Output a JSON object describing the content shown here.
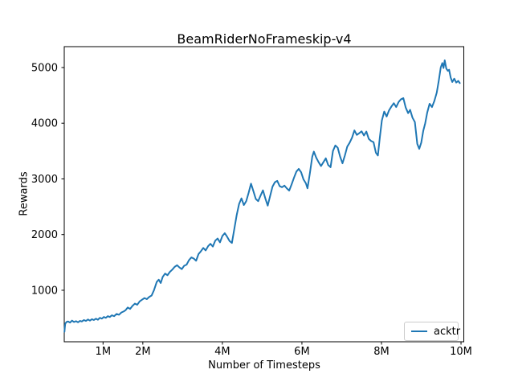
{
  "chart_data": {
    "type": "line",
    "title": "BeamRiderNoFrameskip-v4",
    "xlabel": "Number of Timesteps",
    "ylabel": "Rewards",
    "x_unit": "millions of timesteps",
    "xlim": [
      0.0245,
      10.07
    ],
    "ylim": [
      75,
      5375
    ],
    "grid": false,
    "axis_color": "#000000",
    "xticks": {
      "values": [
        1,
        2,
        4,
        6,
        8,
        10
      ],
      "labels": [
        "1M",
        "2M",
        "4M",
        "6M",
        "8M",
        "10M"
      ]
    },
    "yticks": {
      "values": [
        1000,
        2000,
        3000,
        4000,
        5000
      ],
      "labels": [
        "1000",
        "2000",
        "3000",
        "4000",
        "5000"
      ]
    },
    "legend": {
      "position": "lower right",
      "entries": [
        {
          "label": "acktr",
          "color": "#1f77b4"
        }
      ]
    },
    "series": [
      {
        "name": "acktr",
        "color": "#1f77b4",
        "points": [
          [
            0.03,
            255
          ],
          [
            0.04,
            340
          ],
          [
            0.05,
            400
          ],
          [
            0.08,
            430
          ],
          [
            0.12,
            440
          ],
          [
            0.17,
            420
          ],
          [
            0.22,
            455
          ],
          [
            0.27,
            430
          ],
          [
            0.32,
            445
          ],
          [
            0.37,
            425
          ],
          [
            0.42,
            450
          ],
          [
            0.47,
            440
          ],
          [
            0.52,
            465
          ],
          [
            0.57,
            450
          ],
          [
            0.62,
            475
          ],
          [
            0.67,
            455
          ],
          [
            0.72,
            480
          ],
          [
            0.77,
            465
          ],
          [
            0.82,
            490
          ],
          [
            0.87,
            470
          ],
          [
            0.92,
            505
          ],
          [
            0.97,
            490
          ],
          [
            1.02,
            520
          ],
          [
            1.07,
            505
          ],
          [
            1.12,
            535
          ],
          [
            1.17,
            520
          ],
          [
            1.22,
            550
          ],
          [
            1.28,
            535
          ],
          [
            1.34,
            575
          ],
          [
            1.4,
            560
          ],
          [
            1.46,
            600
          ],
          [
            1.52,
            620
          ],
          [
            1.57,
            645
          ],
          [
            1.62,
            690
          ],
          [
            1.68,
            665
          ],
          [
            1.74,
            720
          ],
          [
            1.8,
            760
          ],
          [
            1.86,
            740
          ],
          [
            1.92,
            800
          ],
          [
            1.98,
            830
          ],
          [
            2.04,
            860
          ],
          [
            2.1,
            840
          ],
          [
            2.16,
            880
          ],
          [
            2.22,
            905
          ],
          [
            2.28,
            1000
          ],
          [
            2.35,
            1150
          ],
          [
            2.4,
            1190
          ],
          [
            2.45,
            1130
          ],
          [
            2.5,
            1240
          ],
          [
            2.56,
            1300
          ],
          [
            2.62,
            1270
          ],
          [
            2.68,
            1330
          ],
          [
            2.74,
            1370
          ],
          [
            2.8,
            1420
          ],
          [
            2.86,
            1450
          ],
          [
            2.92,
            1410
          ],
          [
            2.98,
            1380
          ],
          [
            3.04,
            1440
          ],
          [
            3.1,
            1460
          ],
          [
            3.16,
            1540
          ],
          [
            3.22,
            1590
          ],
          [
            3.28,
            1570
          ],
          [
            3.34,
            1530
          ],
          [
            3.4,
            1650
          ],
          [
            3.46,
            1700
          ],
          [
            3.52,
            1760
          ],
          [
            3.58,
            1715
          ],
          [
            3.64,
            1790
          ],
          [
            3.7,
            1835
          ],
          [
            3.76,
            1785
          ],
          [
            3.82,
            1890
          ],
          [
            3.88,
            1930
          ],
          [
            3.94,
            1860
          ],
          [
            4.0,
            1975
          ],
          [
            4.06,
            2025
          ],
          [
            4.12,
            1960
          ],
          [
            4.18,
            1885
          ],
          [
            4.24,
            1850
          ],
          [
            4.3,
            2100
          ],
          [
            4.36,
            2350
          ],
          [
            4.42,
            2550
          ],
          [
            4.48,
            2650
          ],
          [
            4.54,
            2530
          ],
          [
            4.6,
            2600
          ],
          [
            4.66,
            2750
          ],
          [
            4.72,
            2915
          ],
          [
            4.78,
            2780
          ],
          [
            4.84,
            2640
          ],
          [
            4.9,
            2600
          ],
          [
            4.96,
            2700
          ],
          [
            5.02,
            2795
          ],
          [
            5.08,
            2650
          ],
          [
            5.14,
            2520
          ],
          [
            5.2,
            2690
          ],
          [
            5.26,
            2860
          ],
          [
            5.32,
            2940
          ],
          [
            5.38,
            2965
          ],
          [
            5.44,
            2870
          ],
          [
            5.5,
            2850
          ],
          [
            5.56,
            2880
          ],
          [
            5.62,
            2830
          ],
          [
            5.68,
            2790
          ],
          [
            5.74,
            2900
          ],
          [
            5.8,
            3020
          ],
          [
            5.86,
            3130
          ],
          [
            5.92,
            3180
          ],
          [
            5.98,
            3120
          ],
          [
            6.04,
            2990
          ],
          [
            6.1,
            2920
          ],
          [
            6.14,
            2830
          ],
          [
            6.2,
            3100
          ],
          [
            6.26,
            3400
          ],
          [
            6.3,
            3490
          ],
          [
            6.36,
            3380
          ],
          [
            6.42,
            3300
          ],
          [
            6.48,
            3230
          ],
          [
            6.54,
            3300
          ],
          [
            6.6,
            3370
          ],
          [
            6.66,
            3250
          ],
          [
            6.72,
            3210
          ],
          [
            6.78,
            3500
          ],
          [
            6.84,
            3600
          ],
          [
            6.9,
            3560
          ],
          [
            6.96,
            3400
          ],
          [
            7.02,
            3280
          ],
          [
            7.08,
            3420
          ],
          [
            7.14,
            3580
          ],
          [
            7.2,
            3650
          ],
          [
            7.26,
            3740
          ],
          [
            7.32,
            3870
          ],
          [
            7.38,
            3790
          ],
          [
            7.44,
            3820
          ],
          [
            7.5,
            3855
          ],
          [
            7.56,
            3780
          ],
          [
            7.62,
            3850
          ],
          [
            7.68,
            3720
          ],
          [
            7.74,
            3680
          ],
          [
            7.8,
            3660
          ],
          [
            7.86,
            3470
          ],
          [
            7.91,
            3420
          ],
          [
            7.96,
            3750
          ],
          [
            8.01,
            4050
          ],
          [
            8.07,
            4210
          ],
          [
            8.13,
            4120
          ],
          [
            8.19,
            4230
          ],
          [
            8.25,
            4300
          ],
          [
            8.31,
            4360
          ],
          [
            8.37,
            4290
          ],
          [
            8.43,
            4380
          ],
          [
            8.49,
            4430
          ],
          [
            8.55,
            4450
          ],
          [
            8.61,
            4280
          ],
          [
            8.67,
            4180
          ],
          [
            8.72,
            4240
          ],
          [
            8.78,
            4100
          ],
          [
            8.84,
            4020
          ],
          [
            8.9,
            3630
          ],
          [
            8.95,
            3540
          ],
          [
            9.0,
            3650
          ],
          [
            9.05,
            3860
          ],
          [
            9.1,
            4000
          ],
          [
            9.15,
            4190
          ],
          [
            9.21,
            4350
          ],
          [
            9.27,
            4290
          ],
          [
            9.33,
            4400
          ],
          [
            9.39,
            4550
          ],
          [
            9.44,
            4760
          ],
          [
            9.49,
            5000
          ],
          [
            9.53,
            5080
          ],
          [
            9.56,
            4990
          ],
          [
            9.59,
            5130
          ],
          [
            9.63,
            4980
          ],
          [
            9.67,
            4940
          ],
          [
            9.7,
            4960
          ],
          [
            9.74,
            4820
          ],
          [
            9.78,
            4740
          ],
          [
            9.83,
            4800
          ],
          [
            9.88,
            4730
          ],
          [
            9.93,
            4760
          ],
          [
            9.97,
            4720
          ]
        ]
      }
    ]
  }
}
